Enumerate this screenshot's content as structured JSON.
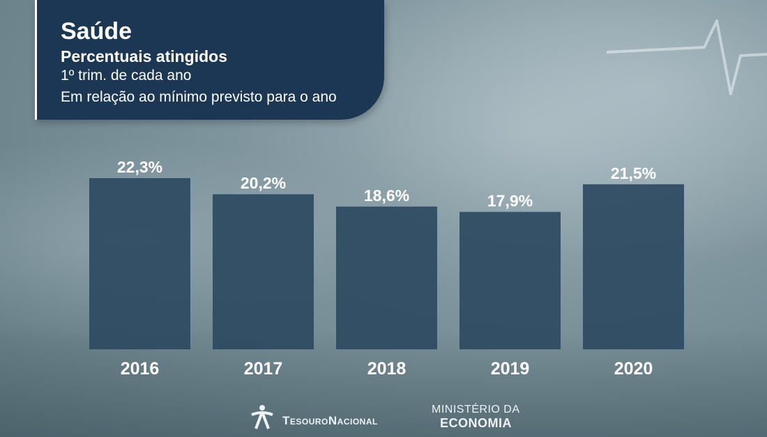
{
  "header": {
    "title": "Saúde",
    "subtitle": "Percentuais atingidos",
    "note_line1": "1º trim. de cada ano",
    "note_line2": "Em relação ao mínimo previsto para o ano"
  },
  "chart_data": {
    "type": "bar",
    "categories": [
      "2016",
      "2017",
      "2018",
      "2019",
      "2020"
    ],
    "values": [
      22.3,
      20.2,
      18.6,
      17.9,
      21.5
    ],
    "value_labels": [
      "22,3%",
      "20,2%",
      "18,6%",
      "17,9%",
      "21,5%"
    ],
    "title": "Saúde",
    "ylim": [
      0,
      22.3
    ],
    "grid": false,
    "bar_color": "#2d4a62"
  },
  "footer": {
    "logo1_text": "TesouroNacional",
    "logo2_line1": "MINISTÉRIO DA",
    "logo2_line2": "ECONOMIA",
    "logo1_icon": "tesouro-star-icon"
  },
  "decor": {
    "ekg_icon": "heartbeat-line-icon"
  }
}
